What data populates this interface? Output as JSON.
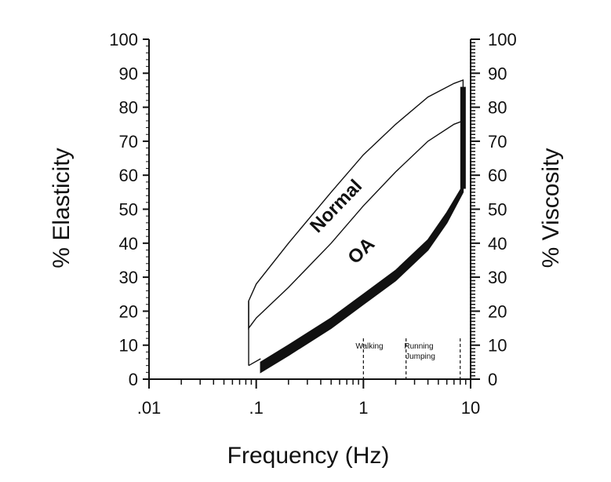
{
  "chart_data": {
    "type": "line",
    "title": "",
    "xlabel": "Frequency (Hz)",
    "ylabel": "% Elasticity",
    "y2label": "% Viscosity",
    "xscale": "log",
    "xlim": [
      0.01,
      10
    ],
    "ylim": [
      0,
      100
    ],
    "y2lim": [
      100,
      0
    ],
    "xticks": [
      ".01",
      ".1",
      "1",
      "10"
    ],
    "yticks": [
      "0",
      "10",
      "20",
      "30",
      "40",
      "50",
      "60",
      "70",
      "80",
      "90",
      "100"
    ],
    "y2ticks": [
      "100",
      "90",
      "80",
      "70",
      "60",
      "50",
      "40",
      "30",
      "20",
      "10",
      "0"
    ],
    "grid": false,
    "legend": "none",
    "series": [
      {
        "name": "Normal",
        "kind": "band",
        "x": [
          0.085,
          0.1,
          0.2,
          0.5,
          1,
          2,
          4,
          7,
          8.5
        ],
        "upper": [
          23,
          28,
          40,
          55,
          66,
          75,
          83,
          87,
          88
        ],
        "lower": [
          15,
          18,
          27,
          40,
          51,
          61,
          70,
          75,
          76
        ]
      },
      {
        "name": "OA",
        "kind": "band",
        "x": [
          0.11,
          0.2,
          0.5,
          1,
          2,
          4,
          6,
          8.5
        ],
        "upper": [
          5,
          10,
          18,
          25,
          32,
          41,
          49,
          57
        ],
        "lower": [
          2,
          7,
          15,
          22,
          29,
          38,
          46,
          55
        ]
      }
    ],
    "annotations": {
      "normal": "Normal",
      "oa": "OA",
      "walking": "Walking",
      "running": "Running",
      "jumping": "Jumping"
    },
    "activity_ranges": [
      {
        "label": "Walking",
        "x": [
          1,
          2.5
        ]
      },
      {
        "label": "Running Jumping",
        "x": [
          2.5,
          8
        ]
      }
    ]
  }
}
